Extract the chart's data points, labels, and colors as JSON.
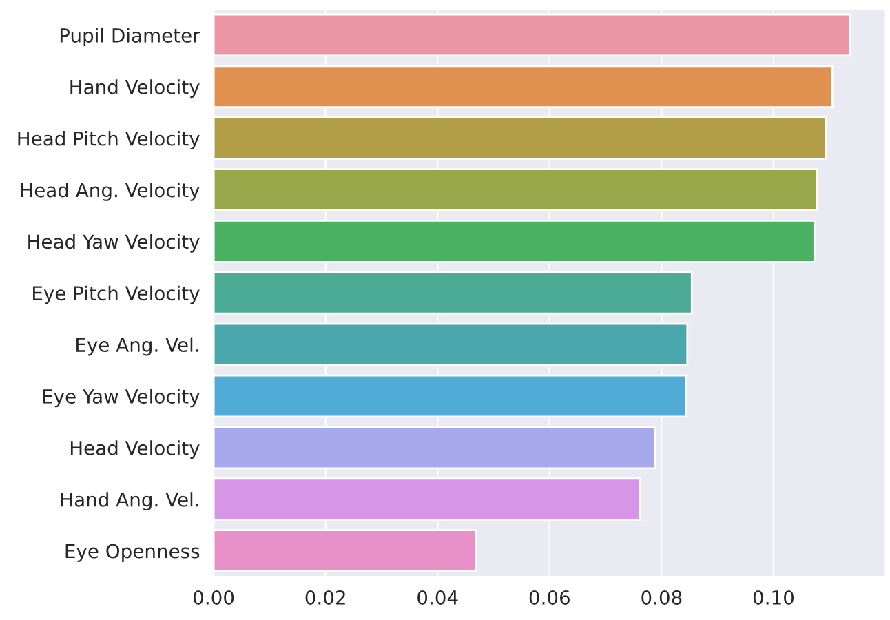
{
  "chart_data": {
    "type": "bar",
    "orientation": "horizontal",
    "categories": [
      "Pupil Diameter",
      "Hand Velocity",
      "Head Pitch Velocity",
      "Head Ang. Velocity",
      "Head Yaw Velocity",
      "Eye Pitch Velocity",
      "Eye Ang. Vel.",
      "Eye Yaw Velocity",
      "Head Velocity",
      "Hand Ang. Vel.",
      "Eye Openness"
    ],
    "values": [
      0.1137,
      0.1105,
      0.1093,
      0.1078,
      0.1073,
      0.0854,
      0.0846,
      0.0844,
      0.0788,
      0.0761,
      0.0468
    ],
    "colors": [
      "#ed96a3",
      "#e0914f",
      "#b19e47",
      "#98a74a",
      "#4bb162",
      "#4bab94",
      "#4aa8ad",
      "#50abd7",
      "#a8a8ec",
      "#d795e8",
      "#e891c8"
    ],
    "xlim": [
      0,
      0.12
    ],
    "xticks": [
      {
        "value": 0,
        "label": "0.00"
      },
      {
        "value": 0.02,
        "label": "0.02"
      },
      {
        "value": 0.04,
        "label": "0.04"
      },
      {
        "value": 0.06,
        "label": "0.06"
      },
      {
        "value": 0.08,
        "label": "0.08"
      },
      {
        "value": 0.1,
        "label": "0.10"
      }
    ],
    "grid": "x"
  }
}
